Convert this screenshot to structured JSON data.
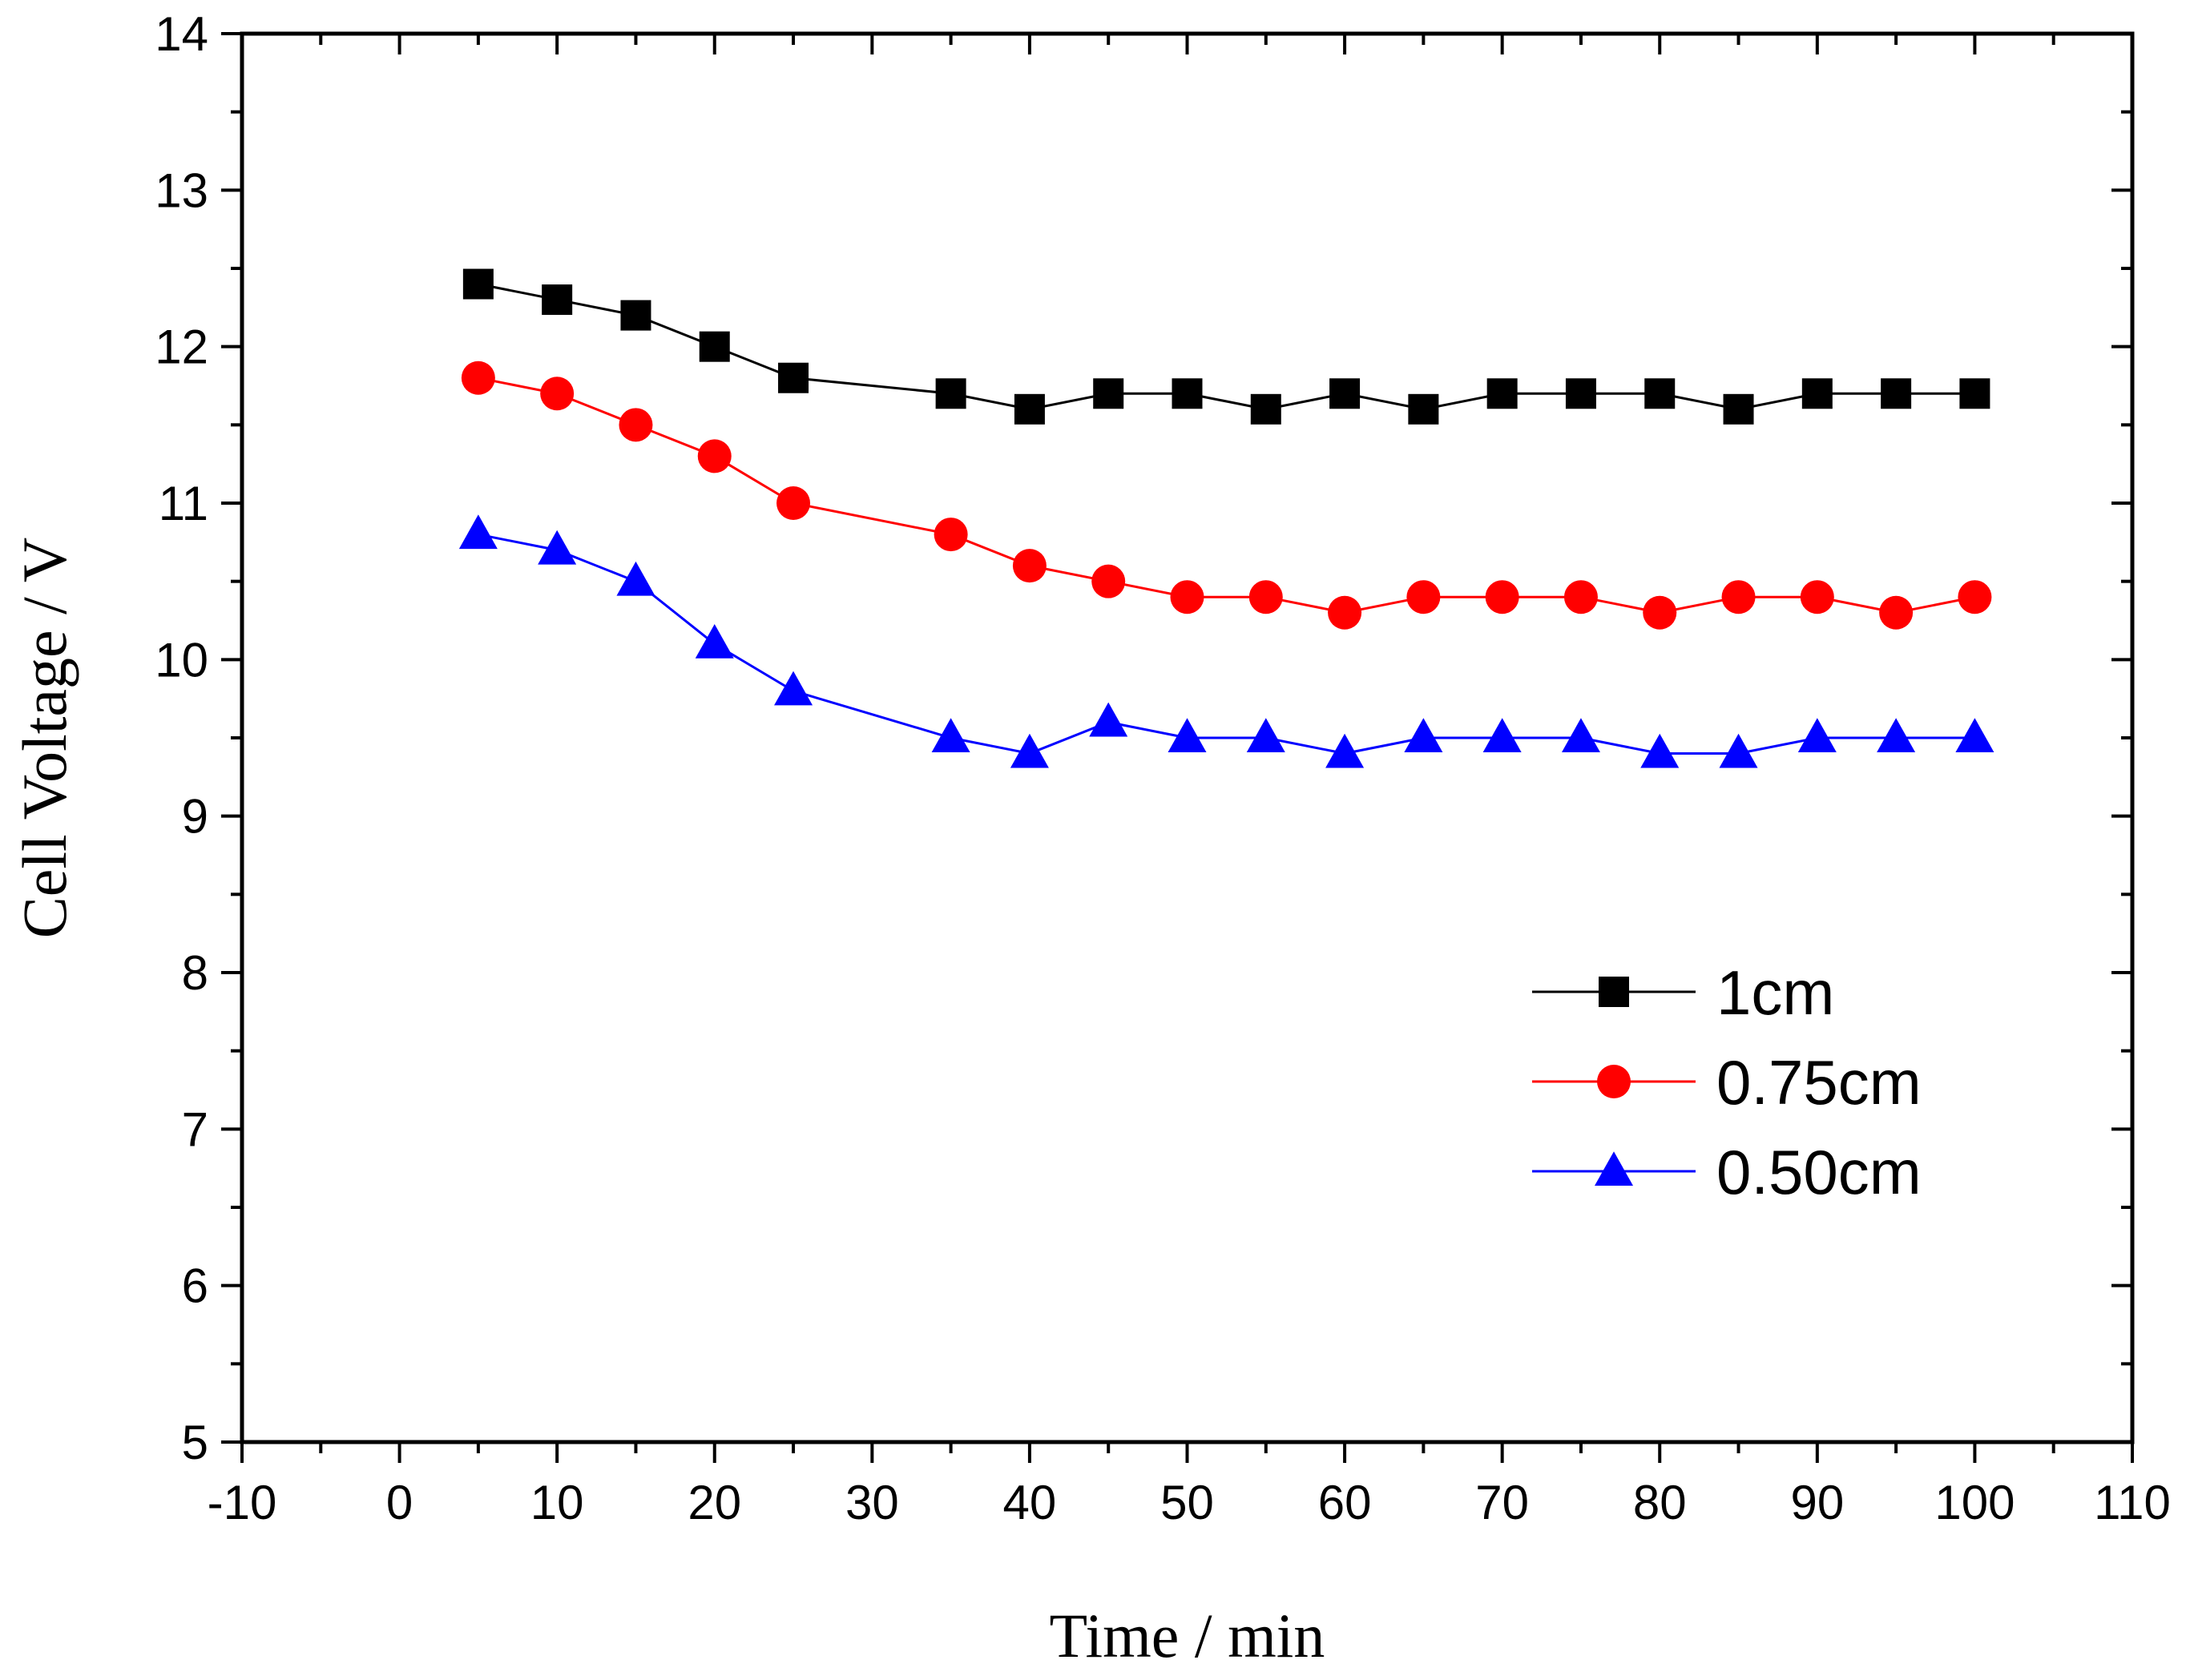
{
  "chart_data": {
    "type": "line",
    "title": "",
    "xlabel": "Time / min",
    "ylabel": "Cell Voltage / V",
    "xlim": [
      -10,
      110
    ],
    "ylim": [
      5,
      14
    ],
    "x_ticks": [
      -10,
      0,
      10,
      20,
      30,
      40,
      50,
      60,
      70,
      80,
      90,
      100,
      110
    ],
    "y_ticks": [
      5,
      6,
      7,
      8,
      9,
      10,
      11,
      12,
      13,
      14
    ],
    "x_tick_labels": [
      "-10",
      "0",
      "10",
      "20",
      "30",
      "40",
      "50",
      "60",
      "70",
      "80",
      "90",
      "100",
      "110"
    ],
    "y_tick_labels": [
      "5",
      "6",
      "7",
      "8",
      "9",
      "10",
      "11",
      "12",
      "13",
      "14"
    ],
    "grid": false,
    "legend_position": "center-right",
    "series": [
      {
        "name": "1cm",
        "marker": "square",
        "color": "#000000",
        "x": [
          5,
          10,
          15,
          20,
          25,
          35,
          40,
          45,
          50,
          55,
          60,
          65,
          70,
          75,
          80,
          85,
          90,
          95,
          100
        ],
        "values": [
          12.4,
          12.3,
          12.2,
          12.0,
          11.8,
          11.7,
          11.6,
          11.7,
          11.7,
          11.6,
          11.7,
          11.6,
          11.7,
          11.7,
          11.7,
          11.6,
          11.7,
          11.7,
          11.7
        ]
      },
      {
        "name": "0.75cm",
        "marker": "circle",
        "color": "#ff0000",
        "x": [
          5,
          10,
          15,
          20,
          25,
          35,
          40,
          45,
          50,
          55,
          60,
          65,
          70,
          75,
          80,
          85,
          90,
          95,
          100
        ],
        "values": [
          11.8,
          11.7,
          11.5,
          11.3,
          11.0,
          10.8,
          10.6,
          10.5,
          10.4,
          10.4,
          10.3,
          10.4,
          10.4,
          10.4,
          10.3,
          10.4,
          10.4,
          10.3,
          10.4
        ]
      },
      {
        "name": "0.50cm",
        "marker": "triangle",
        "color": "#0000ff",
        "x": [
          5,
          10,
          15,
          20,
          25,
          35,
          40,
          45,
          50,
          55,
          60,
          65,
          70,
          75,
          80,
          85,
          90,
          95,
          100
        ],
        "values": [
          10.8,
          10.7,
          10.5,
          10.1,
          9.8,
          9.5,
          9.4,
          9.6,
          9.5,
          9.5,
          9.4,
          9.5,
          9.5,
          9.5,
          9.4,
          9.4,
          9.5,
          9.5,
          9.5
        ]
      }
    ]
  }
}
